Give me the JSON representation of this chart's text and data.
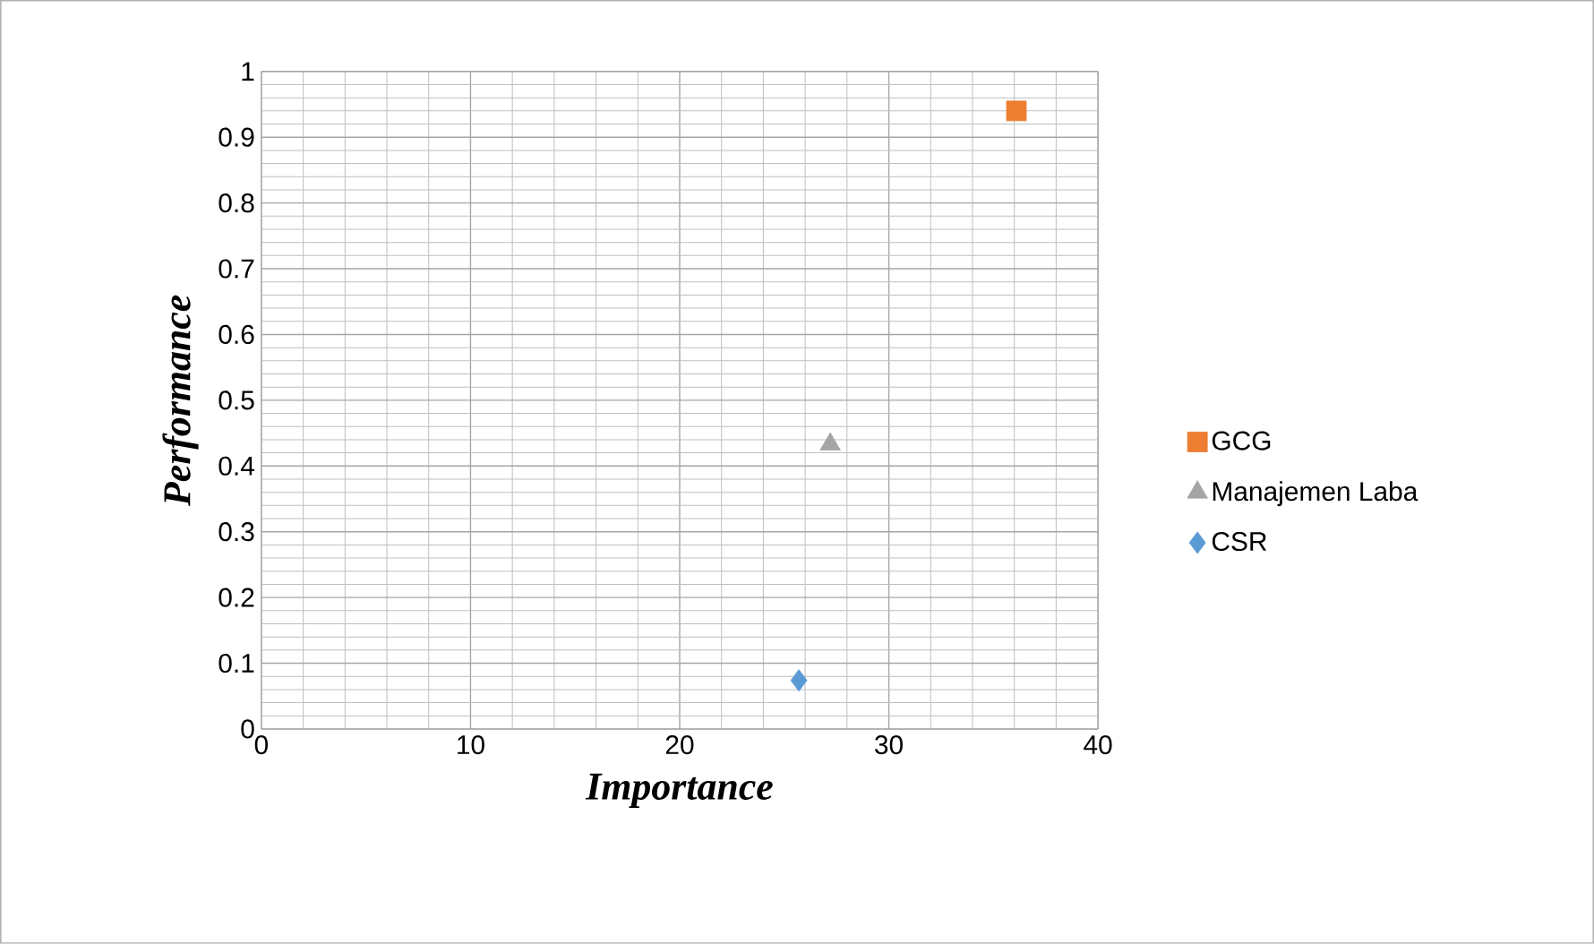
{
  "chart_data": {
    "type": "scatter",
    "xlabel": "Importance",
    "ylabel": "Performance",
    "xlim": [
      0,
      40
    ],
    "xticks": [
      0,
      10,
      20,
      30,
      40
    ],
    "ylim": [
      0,
      1
    ],
    "yticks": [
      0,
      0.1,
      0.2,
      0.3,
      0.4,
      0.5,
      0.6,
      0.7,
      0.8,
      0.9,
      1
    ],
    "grid": true,
    "legend": "right",
    "series": [
      {
        "name": "GCG",
        "color": "#ed7d31",
        "marker": "square",
        "x": [
          36.1
        ],
        "values": [
          0.94
        ]
      },
      {
        "name": "Manajemen Laba",
        "color": "#a5a5a5",
        "marker": "triangle",
        "x": [
          27.2
        ],
        "values": [
          0.433
        ]
      },
      {
        "name": "CSR",
        "color": "#5b9bd5",
        "marker": "diamond",
        "x": [
          25.7
        ],
        "values": [
          0.074
        ]
      }
    ]
  }
}
